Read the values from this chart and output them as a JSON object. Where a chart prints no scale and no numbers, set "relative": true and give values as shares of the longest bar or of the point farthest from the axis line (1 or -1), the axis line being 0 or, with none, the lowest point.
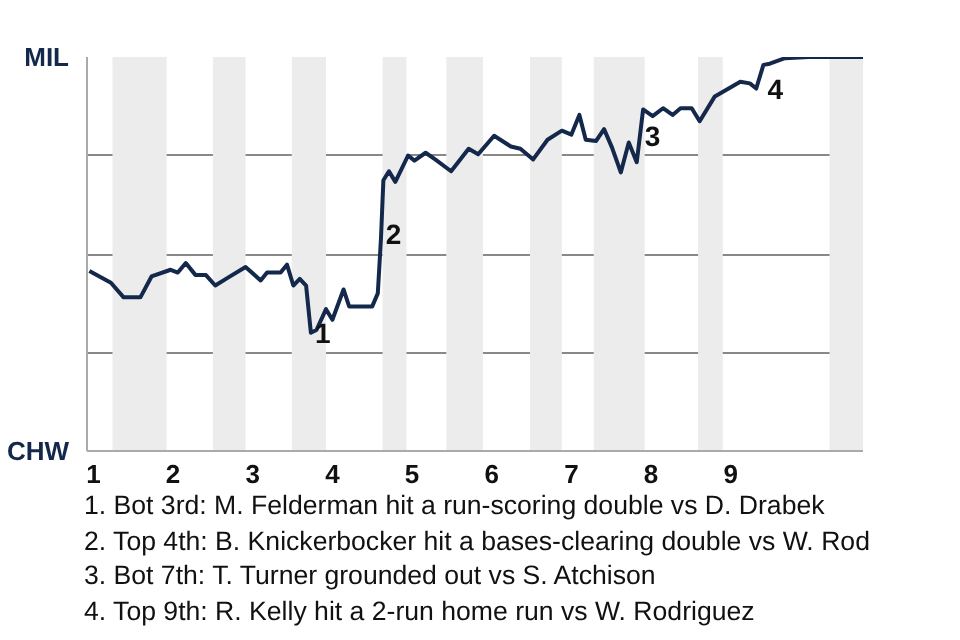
{
  "chart_data": {
    "type": "line",
    "relative": true,
    "x": [
      0.95,
      1.22,
      1.38,
      1.59,
      1.73,
      1.97,
      2.06,
      2.16,
      2.28,
      2.41,
      2.53,
      2.69,
      2.91,
      3.1,
      3.18,
      3.35,
      3.43,
      3.51,
      3.59,
      3.67,
      3.73,
      3.8,
      3.92,
      4.0,
      4.14,
      4.21,
      4.5,
      4.57,
      4.61,
      4.64,
      4.71,
      4.79,
      4.95,
      5.03,
      5.17,
      5.29,
      5.49,
      5.71,
      5.83,
      6.03,
      6.24,
      6.36,
      6.52,
      6.7,
      6.88,
      7.0,
      7.1,
      7.18,
      7.31,
      7.41,
      7.51,
      7.62,
      7.72,
      7.82,
      7.9,
      8.02,
      8.15,
      8.27,
      8.37,
      8.51,
      8.61,
      8.8,
      9.12,
      9.24,
      9.32,
      9.41,
      9.49,
      9.68,
      9.98,
      10.66
    ],
    "series": [
      {
        "color": "#14284b",
        "values": [
          0.457,
          0.427,
          0.39,
          0.39,
          0.443,
          0.46,
          0.453,
          0.477,
          0.447,
          0.447,
          0.42,
          0.44,
          0.467,
          0.433,
          0.453,
          0.453,
          0.473,
          0.42,
          0.437,
          0.42,
          0.3,
          0.307,
          0.36,
          0.333,
          0.41,
          0.367,
          0.367,
          0.4,
          0.54,
          0.687,
          0.71,
          0.683,
          0.75,
          0.737,
          0.757,
          0.74,
          0.71,
          0.767,
          0.753,
          0.8,
          0.773,
          0.767,
          0.74,
          0.79,
          0.813,
          0.803,
          0.853,
          0.79,
          0.787,
          0.817,
          0.77,
          0.707,
          0.783,
          0.733,
          0.867,
          0.85,
          0.87,
          0.853,
          0.87,
          0.87,
          0.837,
          0.9,
          0.937,
          0.933,
          0.92,
          0.98,
          0.983,
          0.997,
          1,
          1
        ]
      }
    ],
    "xlim": [
      0.92,
      10.66
    ],
    "xticks": [
      1,
      2,
      3,
      4,
      5,
      6,
      7,
      8,
      9
    ],
    "grid": "y",
    "marker": "none",
    "line_style": "solid",
    "bands": [
      {
        "axis": "x",
        "from": 1.24,
        "to": 1.92,
        "color": "#ececec"
      },
      {
        "axis": "x",
        "from": 2.5,
        "to": 2.91,
        "color": "#ececec"
      },
      {
        "axis": "x",
        "from": 3.49,
        "to": 3.92,
        "color": "#ececec"
      },
      {
        "axis": "x",
        "from": 4.63,
        "to": 4.93,
        "color": "#ececec"
      },
      {
        "axis": "x",
        "from": 5.43,
        "to": 5.89,
        "color": "#ececec"
      },
      {
        "axis": "x",
        "from": 6.48,
        "to": 6.88,
        "color": "#ececec"
      },
      {
        "axis": "x",
        "from": 7.28,
        "to": 7.92,
        "color": "#ececec"
      },
      {
        "axis": "x",
        "from": 8.59,
        "to": 8.9,
        "color": "#ececec"
      },
      {
        "axis": "x",
        "from": 10.24,
        "to": 10.66,
        "color": "#ececec"
      }
    ],
    "annotations": [
      "MIL",
      "CHW",
      {
        "text": "1",
        "x": 3.73,
        "y": 0.3
      },
      {
        "text": "2",
        "x": 4.62,
        "y": 0.55
      },
      {
        "text": "3",
        "x": 7.87,
        "y": 0.8
      },
      {
        "text": "4",
        "x": 9.41,
        "y": 0.92
      },
      "1. Bot 3rd: M. Felderman hit a run-scoring double vs D. Drabek",
      "2. Top 4th: B. Knickerbocker hit a bases-clearing double vs W. Rod",
      "3. Bot 7th: T. Turner grounded out vs S. Atchison",
      "4. Top 9th: R. Kelly hit a 2-run home run vs W. Rodriguez"
    ]
  }
}
